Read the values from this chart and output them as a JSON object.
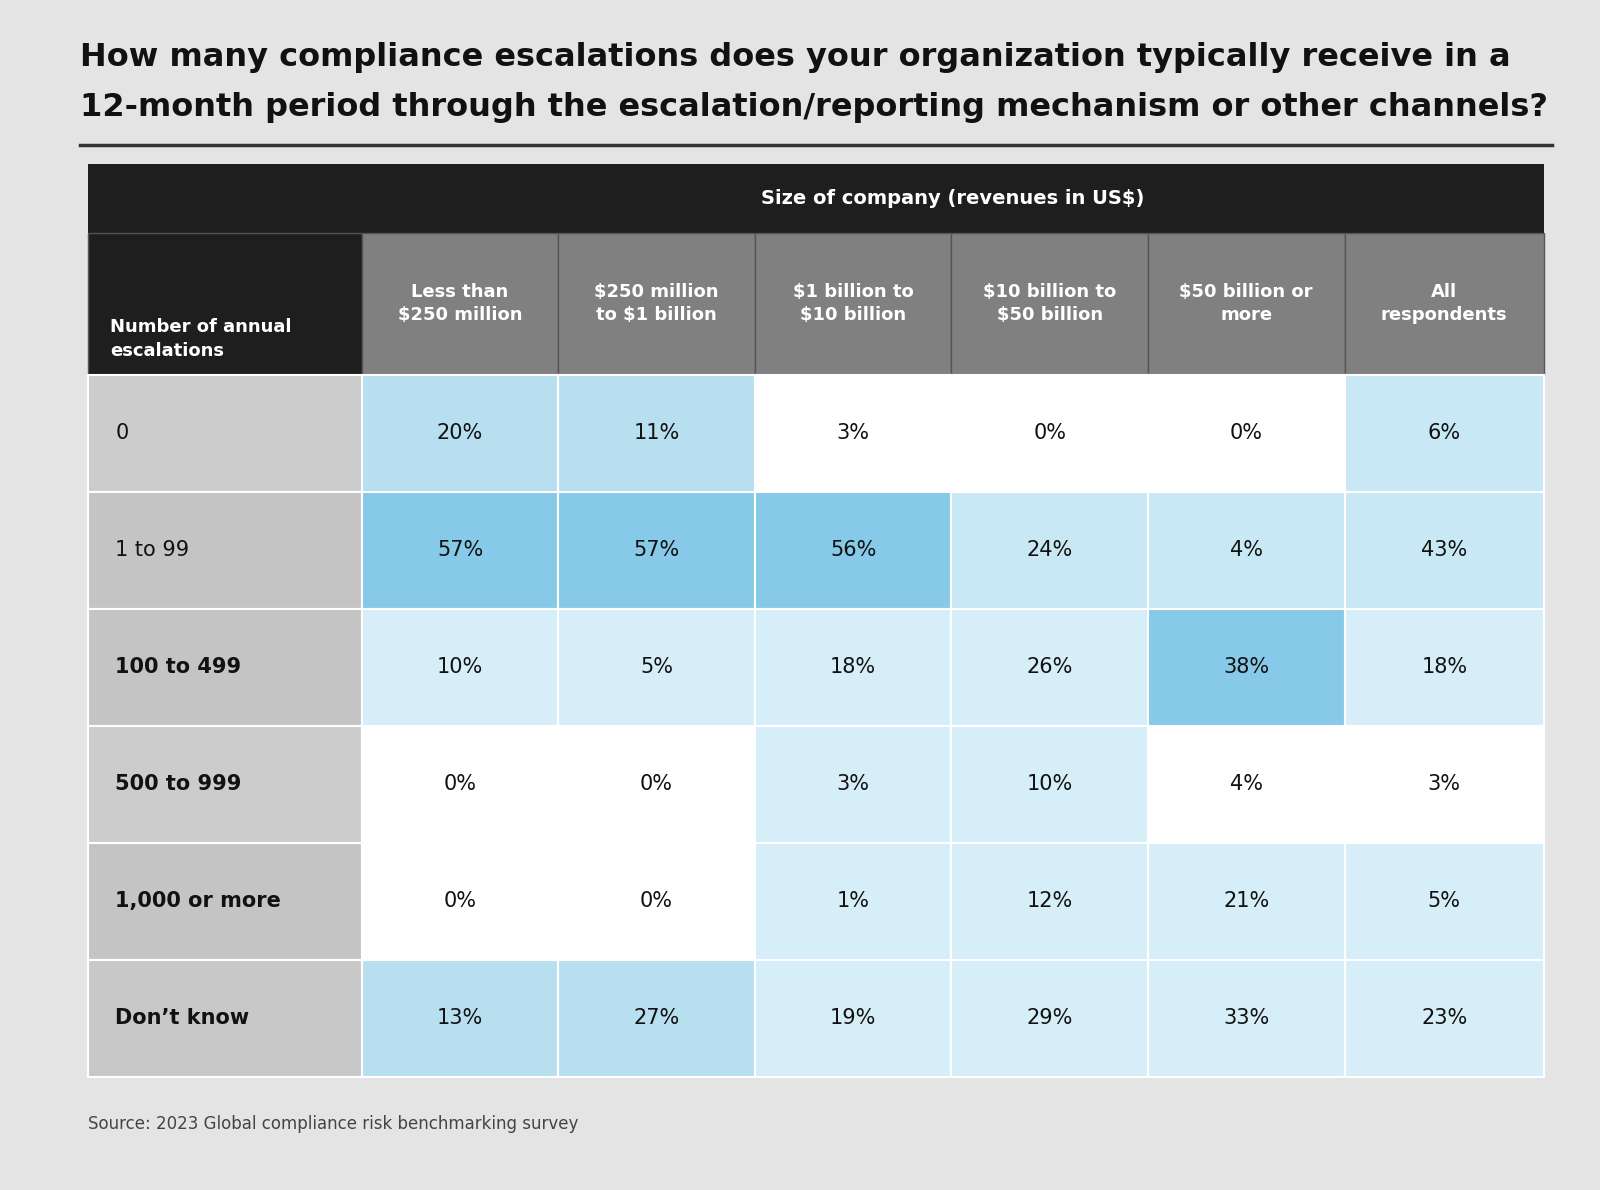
{
  "title_line1": "How many compliance escalations does your organization typically receive in a",
  "title_line2": "12-month period through the escalation/reporting mechanism or other channels?",
  "source": "Source: 2023 Global compliance risk benchmarking survey",
  "header_main": "Size of company (revenues in US$)",
  "row_header_label": "Number of annual\nescalations",
  "col_headers": [
    "Less than\n$250 million",
    "$250 million\nto $1 billion",
    "$1 billion to\n$10 billion",
    "$10 billion to\n$50 billion",
    "$50 billion or\nmore",
    "All\nrespondents"
  ],
  "row_labels": [
    "0",
    "1 to 99",
    "100 to 499",
    "500 to 999",
    "1,000 or more",
    "Don’t know"
  ],
  "row_labels_bold": [
    false,
    false,
    true,
    true,
    true,
    true
  ],
  "data": [
    [
      "20%",
      "11%",
      "3%",
      "0%",
      "0%",
      "6%"
    ],
    [
      "57%",
      "57%",
      "56%",
      "24%",
      "4%",
      "43%"
    ],
    [
      "10%",
      "5%",
      "18%",
      "26%",
      "38%",
      "18%"
    ],
    [
      "0%",
      "0%",
      "3%",
      "10%",
      "4%",
      "3%"
    ],
    [
      "0%",
      "0%",
      "1%",
      "12%",
      "21%",
      "5%"
    ],
    [
      "13%",
      "27%",
      "19%",
      "29%",
      "33%",
      "23%"
    ]
  ],
  "cell_colors": [
    [
      "#b8dff0",
      "#b8dff0",
      "#ffffff",
      "#ffffff",
      "#ffffff",
      "#c8e8f5"
    ],
    [
      "#87c9e8",
      "#87c9e8",
      "#87c9e8",
      "#c8e8f5",
      "#c8e8f5",
      "#c8e8f5"
    ],
    [
      "#d6eef8",
      "#d6eef8",
      "#d6eef8",
      "#d6eef8",
      "#87c9e8",
      "#d6eef8"
    ],
    [
      "#ffffff",
      "#ffffff",
      "#d6eef8",
      "#d6eef8",
      "#ffffff",
      "#ffffff"
    ],
    [
      "#ffffff",
      "#ffffff",
      "#d6eef8",
      "#d6eef8",
      "#d6eef8",
      "#d6eef8"
    ],
    [
      "#b8dff0",
      "#b8dff0",
      "#d6eef8",
      "#d6eef8",
      "#d6eef8",
      "#d6eef8"
    ]
  ],
  "bg_color": "#e4e4e4",
  "header_dark_bg": "#1e1e1e",
  "header_gray_bg": "#808080",
  "title_fontsize": 23,
  "header_fontsize": 13,
  "cell_fontsize": 15,
  "row_label_fontsize": 15,
  "source_fontsize": 12
}
